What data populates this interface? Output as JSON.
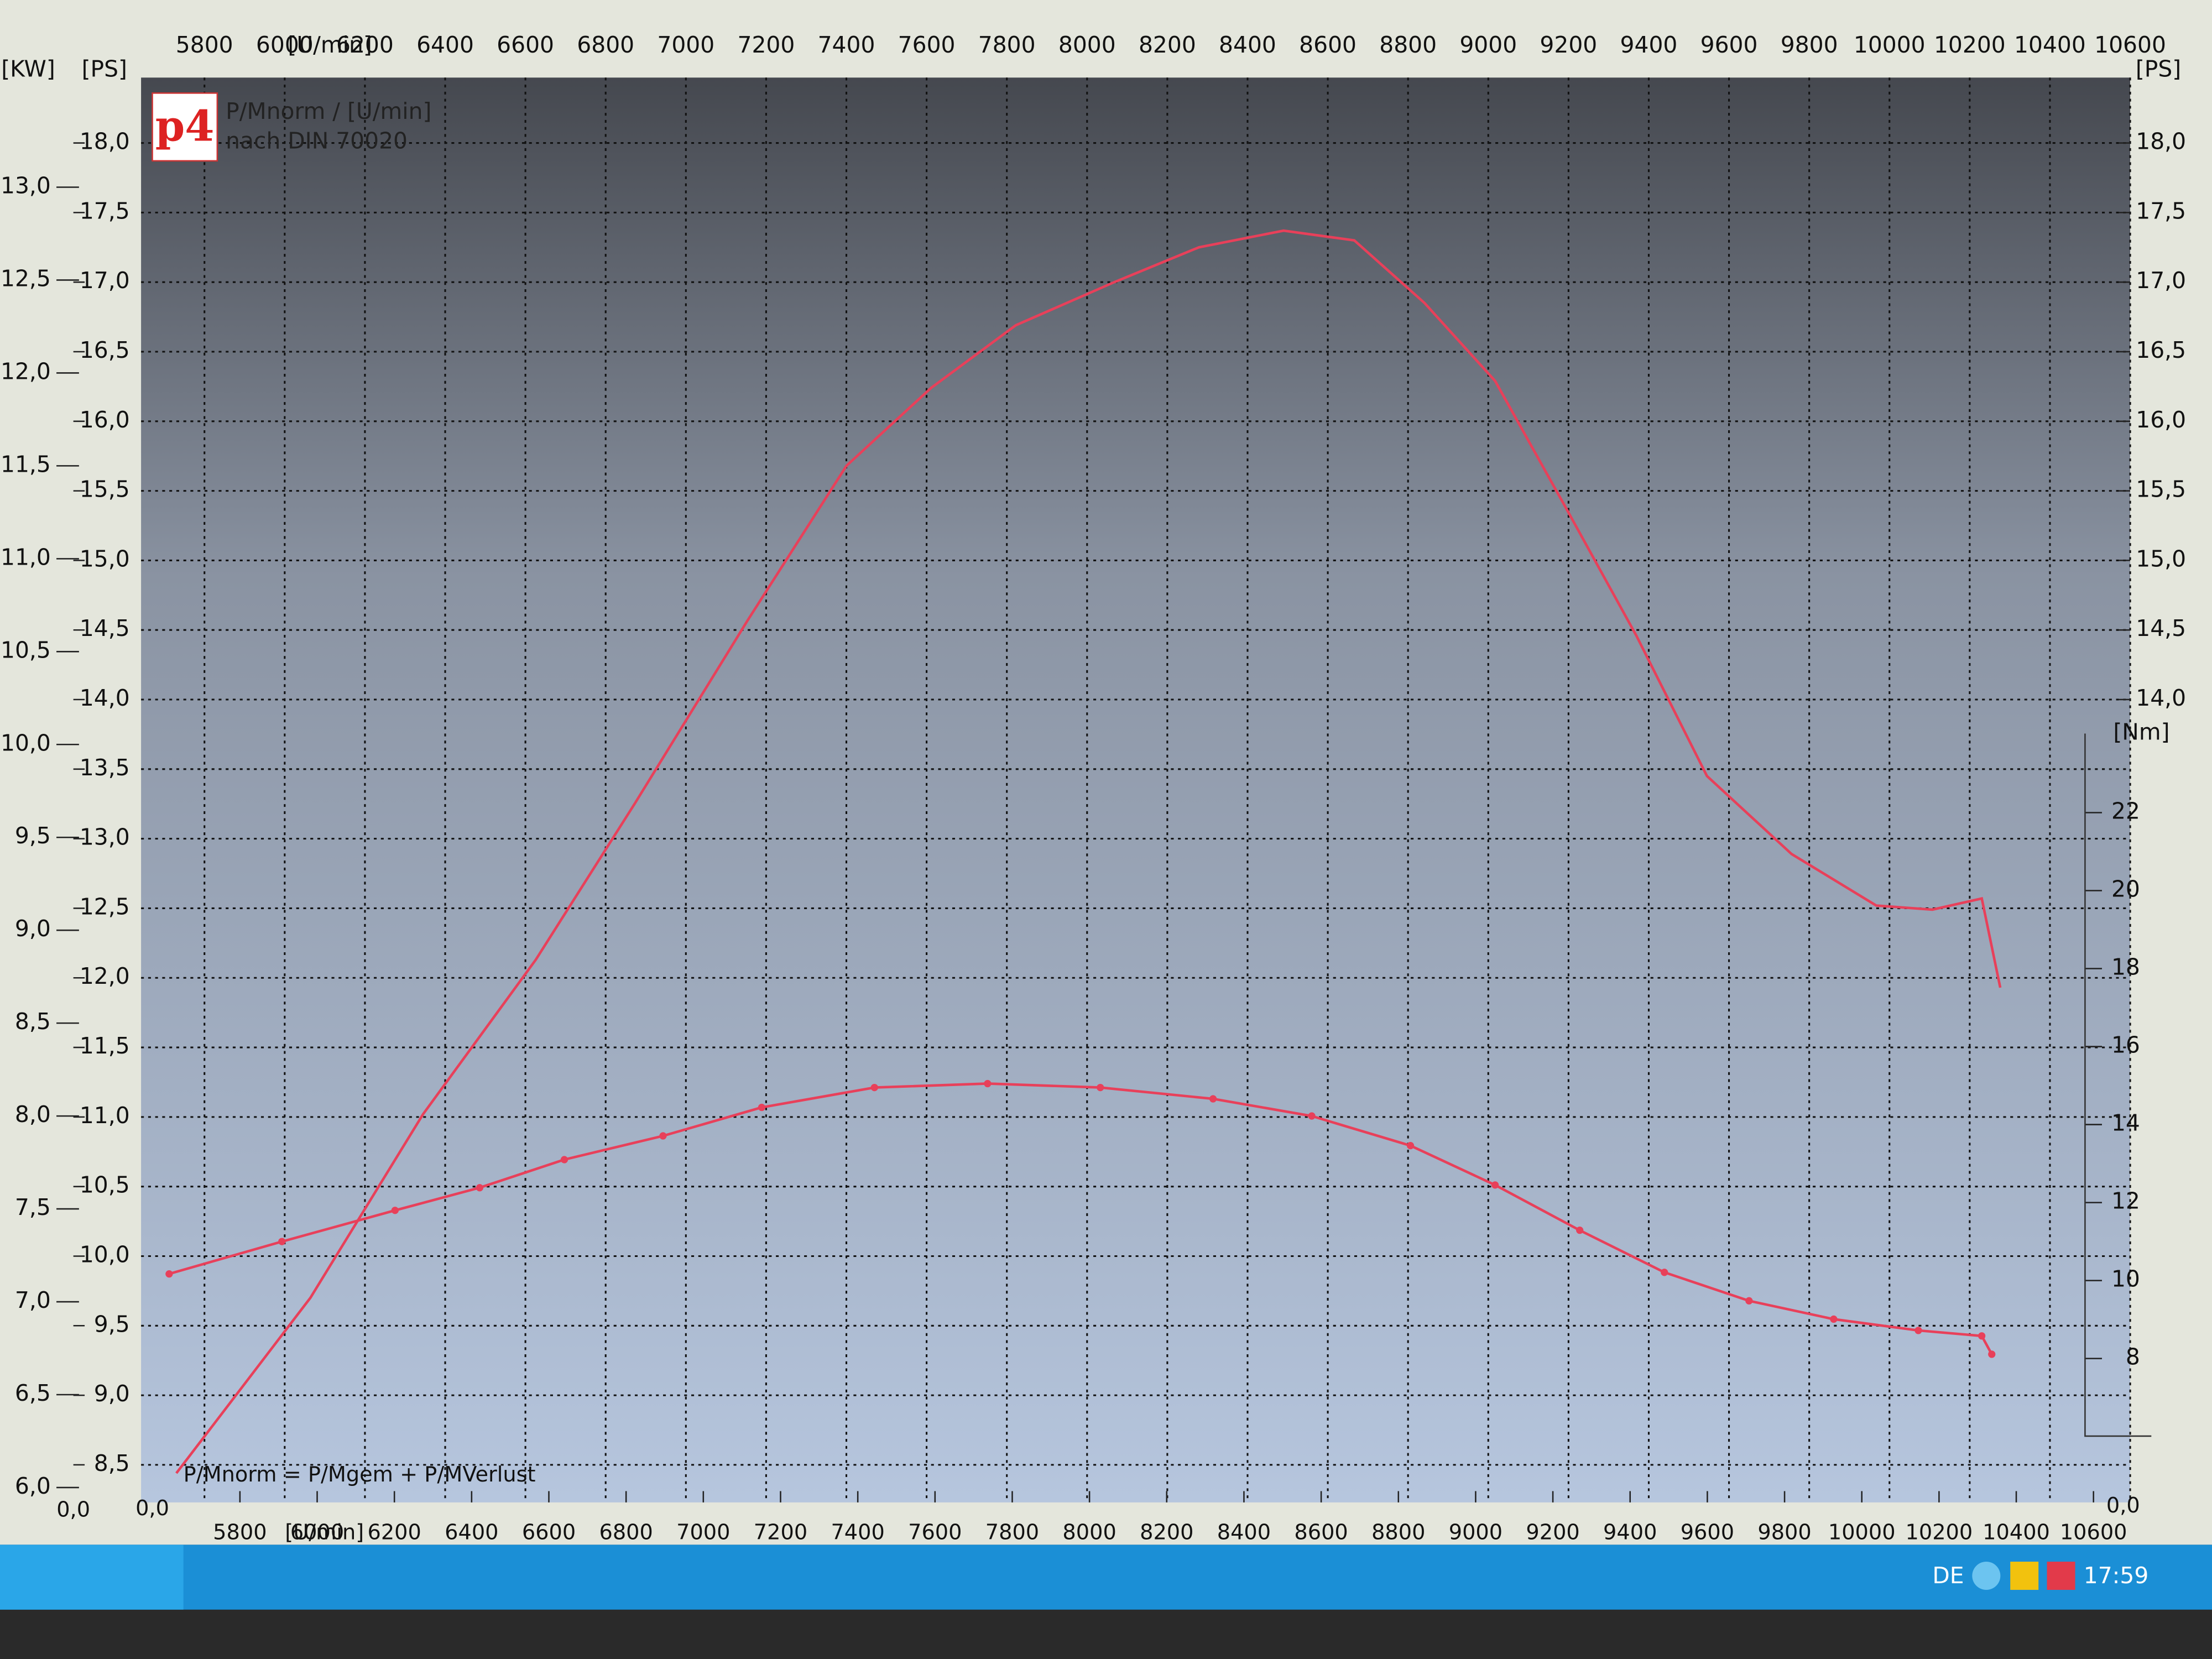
{
  "taskbar": {
    "language": "DE",
    "clock": "17:59"
  },
  "chart_data": {
    "type": "line",
    "logo": "p4",
    "title": "P/Mnorm / [U/min]",
    "subtitle": "nach DIN 70020",
    "annotation": "P/Mnorm = P/Mgem + P/MVerlust",
    "x_label": "[U/min]",
    "xlim": [
      5642,
      10600
    ],
    "xticks": [
      5800,
      6000,
      6200,
      6400,
      6600,
      6800,
      7000,
      7200,
      7400,
      7600,
      7800,
      8000,
      8200,
      8400,
      8600,
      8800,
      9000,
      9200,
      9400,
      9600,
      9800,
      10000,
      10200,
      10400,
      10600
    ],
    "x2lim": [
      5544,
      10695
    ],
    "x2ticks": [
      5800,
      6000,
      6200,
      6400,
      6600,
      6800,
      7000,
      7200,
      7400,
      7600,
      7800,
      8000,
      8200,
      8400,
      8600,
      8800,
      9000,
      9200,
      9400,
      9600,
      9800,
      10000,
      10200,
      10400,
      10600
    ],
    "y_label": "[PS]",
    "ylim": [
      8.23,
      18.47
    ],
    "yticks": [
      {
        "value": 8.5,
        "label": "8,5"
      },
      {
        "value": 9.0,
        "label": "9,0"
      },
      {
        "value": 9.5,
        "label": "9,5"
      },
      {
        "value": 10.0,
        "label": "10,0"
      },
      {
        "value": 10.5,
        "label": "10,5"
      },
      {
        "value": 11.0,
        "label": "11,0"
      },
      {
        "value": 11.5,
        "label": "11,5"
      },
      {
        "value": 12.0,
        "label": "12,0"
      },
      {
        "value": 12.5,
        "label": "12,5"
      },
      {
        "value": 13.0,
        "label": "13,0"
      },
      {
        "value": 13.5,
        "label": "13,5"
      },
      {
        "value": 14.0,
        "label": "14,0"
      },
      {
        "value": 14.5,
        "label": "14,5"
      },
      {
        "value": 15.0,
        "label": "15,0"
      },
      {
        "value": 15.5,
        "label": "15,5"
      },
      {
        "value": 16.0,
        "label": "16,0"
      },
      {
        "value": 16.5,
        "label": "16,5"
      },
      {
        "value": 17.0,
        "label": "17,0"
      },
      {
        "value": 17.5,
        "label": "17,5"
      },
      {
        "value": 18.0,
        "label": "18,0"
      }
    ],
    "y_zero_label": "0,0",
    "y_right_label": "[PS]",
    "y_right_ticks": [
      {
        "value": 14.0,
        "label": "14,0"
      },
      {
        "value": 14.5,
        "label": "14,5"
      },
      {
        "value": 15.0,
        "label": "15,0"
      },
      {
        "value": 15.5,
        "label": "15,5"
      },
      {
        "value": 16.0,
        "label": "16,0"
      },
      {
        "value": 16.5,
        "label": "16,5"
      },
      {
        "value": 17.0,
        "label": "17,0"
      },
      {
        "value": 17.5,
        "label": "17,5"
      },
      {
        "value": 18.0,
        "label": "18,0"
      }
    ],
    "kw_label": "[KW]",
    "kwlim": [
      5.92,
      13.59
    ],
    "kwticks": [
      {
        "value": 6.0,
        "label": "6,0"
      },
      {
        "value": 6.5,
        "label": "6,5"
      },
      {
        "value": 7.0,
        "label": "7,0"
      },
      {
        "value": 7.5,
        "label": "7,5"
      },
      {
        "value": 8.0,
        "label": "8,0"
      },
      {
        "value": 8.5,
        "label": "8,5"
      },
      {
        "value": 9.0,
        "label": "9,0"
      },
      {
        "value": 9.5,
        "label": "9,5"
      },
      {
        "value": 10.0,
        "label": "10,0"
      },
      {
        "value": 10.5,
        "label": "10,5"
      },
      {
        "value": 11.0,
        "label": "11,0"
      },
      {
        "value": 11.5,
        "label": "11,5"
      },
      {
        "value": 12.0,
        "label": "12,0"
      },
      {
        "value": 12.5,
        "label": "12,5"
      },
      {
        "value": 13.0,
        "label": "13,0"
      }
    ],
    "kw_zero_label": "0,0",
    "y2_label": "[Nm]",
    "y2lim": [
      4.31,
      40.85
    ],
    "y2ticks": [
      8,
      10,
      12,
      14,
      16,
      18,
      20,
      22
    ],
    "y2_zero_label": "0,0",
    "grid": true,
    "series": [
      {
        "color": "#e8405a",
        "axis": "y",
        "x": [
          5730,
          6064,
          6345,
          6626,
          6872,
          7154,
          7400,
          7611,
          7822,
          8068,
          8279,
          8490,
          8666,
          8841,
          9017,
          9193,
          9369,
          9545,
          9756,
          9967,
          10107,
          10230,
          10276
        ],
        "values": [
          8.44,
          9.7,
          11.02,
          12.13,
          13.25,
          14.57,
          15.68,
          16.24,
          16.69,
          17.0,
          17.25,
          17.37,
          17.3,
          16.85,
          16.29,
          15.38,
          14.46,
          13.45,
          12.89,
          12.52,
          12.49,
          12.57,
          11.93
        ]
      },
      {
        "color": "#e8405a",
        "axis": "y2",
        "markers": true,
        "x": [
          5712,
          5993,
          6275,
          6486,
          6697,
          6943,
          7189,
          7470,
          7752,
          8033,
          8314,
          8560,
          8806,
          9017,
          9228,
          9439,
          9650,
          9861,
          10072,
          10230,
          10255
        ],
        "values": [
          10.17,
          11.0,
          11.8,
          12.38,
          13.1,
          13.71,
          14.44,
          14.95,
          15.05,
          14.95,
          14.66,
          14.22,
          13.46,
          12.45,
          11.29,
          10.21,
          9.48,
          9.01,
          8.72,
          8.58,
          8.11
        ]
      }
    ]
  }
}
